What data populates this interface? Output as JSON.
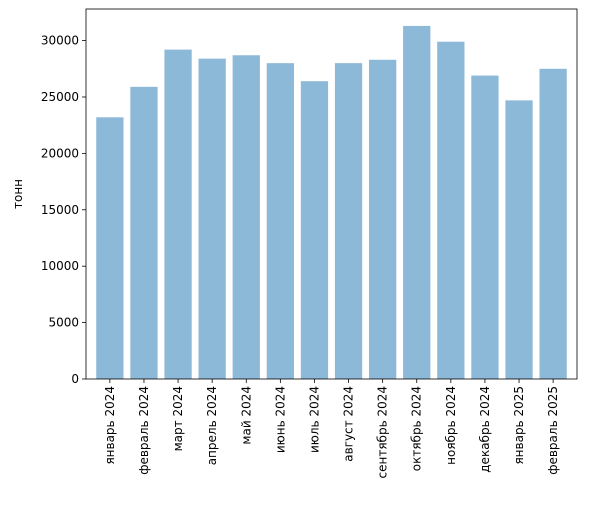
{
  "chart_data": {
    "type": "bar",
    "title": "",
    "xlabel": "",
    "ylabel": "тонн",
    "categories": [
      "январь 2024",
      "февраль 2024",
      "март 2024",
      "апрель 2024",
      "май 2024",
      "июнь 2024",
      "июль 2024",
      "август 2024",
      "сентябрь 2024",
      "октябрь 2024",
      "ноябрь 2024",
      "декабрь 2024",
      "январь 2025",
      "февраль 2025"
    ],
    "values": [
      23200,
      25900,
      29200,
      28400,
      28700,
      28000,
      26400,
      28000,
      28300,
      31300,
      29900,
      26900,
      24700,
      27500
    ],
    "ylim": [
      0,
      32800
    ],
    "yticks": [
      0,
      5000,
      10000,
      15000,
      20000,
      25000,
      30000
    ],
    "grid": false,
    "legend": "none",
    "bar_color": "#8db9d9"
  }
}
